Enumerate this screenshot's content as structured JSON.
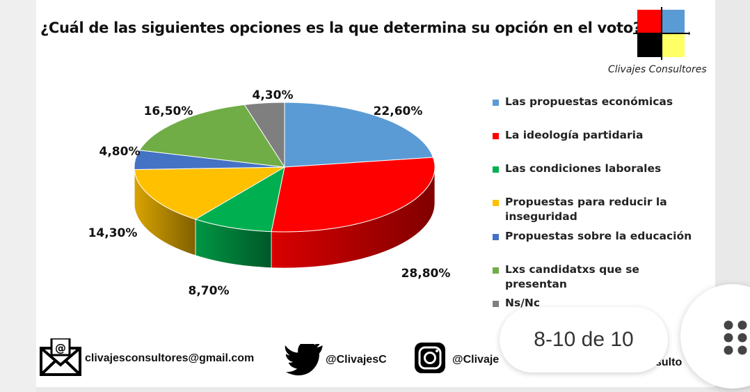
{
  "title": "¿Cuál de las siguientes opciones es la que determina su opción en el voto?",
  "brand": "Clivajes Consultores",
  "logo_colors": [
    "#ff0000",
    "#5b9bd5",
    "#000000",
    "#ffff66"
  ],
  "chart_data": {
    "type": "pie",
    "title": "¿Cuál de las siguientes opciones es la que determina su opción en el voto?",
    "legend_position": "right",
    "slices": [
      {
        "label": "Las propuestas económicas",
        "value": 22.6,
        "display": "22,60%",
        "color": "#5b9bd5"
      },
      {
        "label": "La ideología partidaria",
        "value": 28.8,
        "display": "28,80%",
        "color": "#ff0000"
      },
      {
        "label": "Las condiciones laborales",
        "value": 8.7,
        "display": "8,70%",
        "color": "#00b050"
      },
      {
        "label": "Propuestas para reducir la inseguridad",
        "value": 14.3,
        "display": "14,30%",
        "color": "#ffc000"
      },
      {
        "label": "Propuestas sobre la educación",
        "value": 4.8,
        "display": "4,80%",
        "color": "#4472c4"
      },
      {
        "label": "Lxs candidatxs que se presentan",
        "value": 16.5,
        "display": "16,50%",
        "color": "#70ad47"
      },
      {
        "label": "Ns/Nc",
        "value": 4.3,
        "display": "4,30%",
        "color": "#7f7f7f"
      }
    ]
  },
  "footer": {
    "email": "clivajesconsultores@gmail.com",
    "twitter": "@ClivajesC",
    "instagram": "@Clivaje",
    "facebook_partial": "sulto"
  },
  "pager": {
    "text": "8-10 de 10"
  },
  "icons": {
    "email": "email-icon",
    "twitter": "twitter-bird-icon",
    "instagram": "instagram-icon",
    "menu": "grid-dots-icon"
  }
}
